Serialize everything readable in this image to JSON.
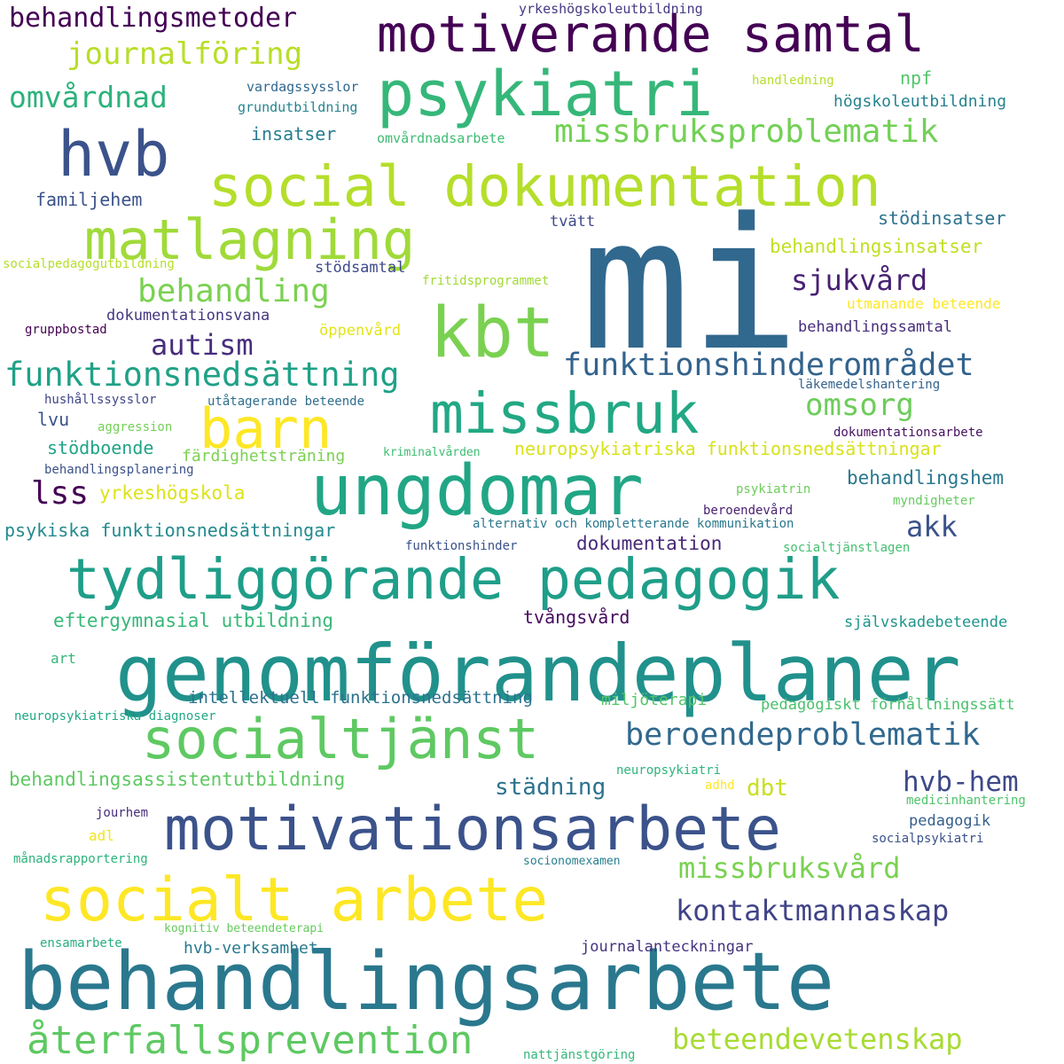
{
  "words": [
    {
      "text": "mi",
      "color": "#31688e"
    },
    {
      "text": "behandlingsarbete",
      "color": "#2a788e"
    },
    {
      "text": "genomförandeplaner",
      "color": "#21918c"
    },
    {
      "text": "ungdomar",
      "color": "#21a685"
    },
    {
      "text": "motivationsarbete",
      "color": "#3b528b"
    },
    {
      "text": "tydliggörande pedagogik",
      "color": "#1f9e89"
    },
    {
      "text": "psykiatri",
      "color": "#35b779"
    },
    {
      "text": "social dokumentation",
      "color": "#b5de2b"
    },
    {
      "text": "socialt arbete",
      "color": "#fde725"
    },
    {
      "text": "motiverande samtal",
      "color": "#440154"
    },
    {
      "text": "kbt",
      "color": "#7ad151"
    },
    {
      "text": "missbruk",
      "color": "#22a884"
    },
    {
      "text": "socialtjänst",
      "color": "#5ec962"
    },
    {
      "text": "matlagning",
      "color": "#a0da39"
    },
    {
      "text": "hvb",
      "color": "#3b528b"
    },
    {
      "text": "barn",
      "color": "#fde725"
    },
    {
      "text": "återfallsprevention",
      "color": "#5ec962"
    },
    {
      "text": "funktionsnedsättning",
      "color": "#1fa187"
    },
    {
      "text": "missbruksproblematik",
      "color": "#73d056"
    },
    {
      "text": "behandling",
      "color": "#7ad151"
    },
    {
      "text": "beroendeproblematik",
      "color": "#31688e"
    },
    {
      "text": "funktionshinderområdet",
      "color": "#33638d"
    },
    {
      "text": "journalföring",
      "color": "#b8de29"
    },
    {
      "text": "omvårdnad",
      "color": "#2db27d"
    },
    {
      "text": "behandlingsmetoder",
      "color": "#440154"
    },
    {
      "text": "kontaktmannaskap",
      "color": "#414487"
    },
    {
      "text": "beteendevetenskap",
      "color": "#a8db34"
    },
    {
      "text": "missbruksvård",
      "color": "#7ad151"
    },
    {
      "text": "sjukvård",
      "color": "#482173"
    },
    {
      "text": "autism",
      "color": "#472d7b"
    },
    {
      "text": "hvb-hem",
      "color": "#3e4989"
    },
    {
      "text": "omsorg",
      "color": "#6ccd5a"
    },
    {
      "text": "lss",
      "color": "#440154"
    },
    {
      "text": "akk",
      "color": "#3b528b"
    },
    {
      "text": "städning",
      "color": "#2c728e"
    },
    {
      "text": "dbt",
      "color": "#c8e020"
    },
    {
      "text": "neuropsykiatriska funktionsnedsättningar",
      "color": "#d8e219"
    },
    {
      "text": "psykiska funktionsnedsättningar",
      "color": "#238a8d"
    },
    {
      "text": "eftergymnasial utbildning",
      "color": "#37b878"
    },
    {
      "text": "intellektuell funktionsnedsättning",
      "color": "#2c728e"
    },
    {
      "text": "behandlingsassistentutbildning",
      "color": "#5ec962"
    },
    {
      "text": "yrkeshögskola",
      "color": "#dde318"
    },
    {
      "text": "dokumentation",
      "color": "#482878"
    },
    {
      "text": "tvångsvård",
      "color": "#460b5e"
    },
    {
      "text": "behandlingshem",
      "color": "#2a788e"
    },
    {
      "text": "behandlingsinsatser",
      "color": "#c2df23"
    },
    {
      "text": "stödinsatser",
      "color": "#2c728e"
    },
    {
      "text": "insatser",
      "color": "#287c8e"
    },
    {
      "text": "familjehem",
      "color": "#3b528b"
    },
    {
      "text": "npf",
      "color": "#52c569"
    },
    {
      "text": "högskoleutbildning",
      "color": "#26828e"
    },
    {
      "text": "stödboende",
      "color": "#20a486"
    },
    {
      "text": "färdighetsträning",
      "color": "#7ad151"
    },
    {
      "text": "lvu",
      "color": "#3b528b"
    },
    {
      "text": "pedagogiskt förhållningssätt",
      "color": "#4ac16d"
    },
    {
      "text": "självskadebeteende",
      "color": "#1f958b"
    },
    {
      "text": "miljöterapi",
      "color": "#52c569"
    },
    {
      "text": "pedagogik",
      "color": "#355f8d"
    },
    {
      "text": "journalanteckningar",
      "color": "#46337f"
    },
    {
      "text": "hvb-verksamhet",
      "color": "#297a8e"
    },
    {
      "text": "behandlingssamtal",
      "color": "#472c7a"
    },
    {
      "text": "utmanande beteende",
      "color": "#fde725"
    },
    {
      "text": "öppenvård",
      "color": "#e2e418"
    },
    {
      "text": "tvätt",
      "color": "#3e4a89"
    },
    {
      "text": "dokumentationsvana",
      "color": "#453781"
    },
    {
      "text": "stödsamtal",
      "color": "#3e4989"
    },
    {
      "text": "adl",
      "color": "#f1e51d"
    },
    {
      "text": "art",
      "color": "#35b779"
    },
    {
      "text": "grundutbildning",
      "color": "#25848e"
    },
    {
      "text": "vardagssysslor",
      "color": "#31688e"
    },
    {
      "text": "omvårdnadsarbete",
      "color": "#3fbc73"
    },
    {
      "text": "handledning",
      "color": "#b5de2b"
    },
    {
      "text": "yrkeshögskoleutbildning",
      "color": "#443983"
    },
    {
      "text": "socialpedagogutbildning",
      "color": "#b5de2b"
    },
    {
      "text": "fritidsprogrammet",
      "color": "#a2da37"
    },
    {
      "text": "gruppbostad",
      "color": "#440154"
    },
    {
      "text": "hushållssysslor",
      "color": "#3f4788"
    },
    {
      "text": "utåtagerande beteende",
      "color": "#2e6e8e"
    },
    {
      "text": "aggression",
      "color": "#73d056"
    },
    {
      "text": "kriminalvården",
      "color": "#3fbc73"
    },
    {
      "text": "behandlingsplanering",
      "color": "#3b528b"
    },
    {
      "text": "läkemedelshantering",
      "color": "#33638d"
    },
    {
      "text": "dokumentationsarbete",
      "color": "#471063"
    },
    {
      "text": "psykiatrin",
      "color": "#6ccd5a"
    },
    {
      "text": "beroendevård",
      "color": "#481f70"
    },
    {
      "text": "myndigheter",
      "color": "#65cb5e"
    },
    {
      "text": "alternativ och kompletterande kommunikation",
      "color": "#2a788e"
    },
    {
      "text": "funktionshinder",
      "color": "#3b528b"
    },
    {
      "text": "socialtjänstlagen",
      "color": "#44bf70"
    },
    {
      "text": "neuropsykiatriska diagnoser",
      "color": "#22a785"
    },
    {
      "text": "neuropsykiatri",
      "color": "#2fb47c"
    },
    {
      "text": "adhd",
      "color": "#fde725"
    },
    {
      "text": "medicinhantering",
      "color": "#4ec36b"
    },
    {
      "text": "jourhem",
      "color": "#472d7b"
    },
    {
      "text": "socialpsykiatri",
      "color": "#3b528b"
    },
    {
      "text": "månadsrapportering",
      "color": "#2db27d"
    },
    {
      "text": "socionomexamen",
      "color": "#277f8e"
    },
    {
      "text": "kognitiv beteendeterapi",
      "color": "#65cb5e"
    },
    {
      "text": "ensamarbete",
      "color": "#27ad81"
    },
    {
      "text": "nattjänstgöring",
      "color": "#35b779"
    }
  ]
}
